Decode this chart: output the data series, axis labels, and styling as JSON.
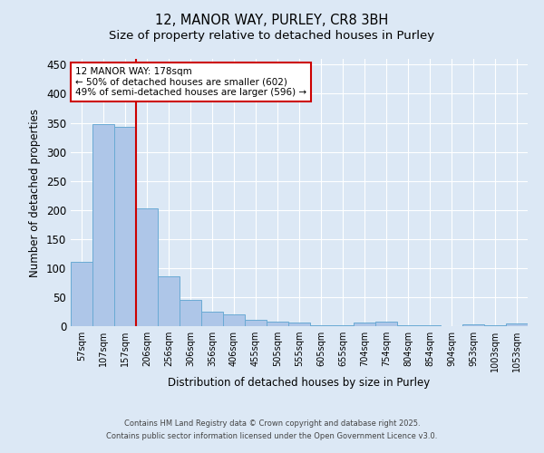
{
  "title1": "12, MANOR WAY, PURLEY, CR8 3BH",
  "title2": "Size of property relative to detached houses in Purley",
  "xlabel": "Distribution of detached houses by size in Purley",
  "ylabel": "Number of detached properties",
  "categories": [
    "57sqm",
    "107sqm",
    "157sqm",
    "206sqm",
    "256sqm",
    "306sqm",
    "356sqm",
    "406sqm",
    "455sqm",
    "505sqm",
    "555sqm",
    "605sqm",
    "655sqm",
    "704sqm",
    "754sqm",
    "804sqm",
    "854sqm",
    "904sqm",
    "953sqm",
    "1003sqm",
    "1053sqm"
  ],
  "values": [
    110,
    348,
    343,
    203,
    85,
    46,
    25,
    21,
    11,
    8,
    6,
    1,
    1,
    7,
    8,
    2,
    1,
    0,
    3,
    1,
    4
  ],
  "bar_color": "#aec6e8",
  "bar_edge_color": "#6aaad4",
  "background_color": "#dce8f5",
  "grid_color": "#ffffff",
  "vline_x": 2.5,
  "vline_color": "#cc0000",
  "annotation_text": "12 MANOR WAY: 178sqm\n← 50% of detached houses are smaller (602)\n49% of semi-detached houses are larger (596) →",
  "annotation_box_color": "#ffffff",
  "annotation_box_edge": "#cc0000",
  "ylim": [
    0,
    460
  ],
  "yticks": [
    0,
    50,
    100,
    150,
    200,
    250,
    300,
    350,
    400,
    450
  ],
  "footer1": "Contains HM Land Registry data © Crown copyright and database right 2025.",
  "footer2": "Contains public sector information licensed under the Open Government Licence v3.0."
}
